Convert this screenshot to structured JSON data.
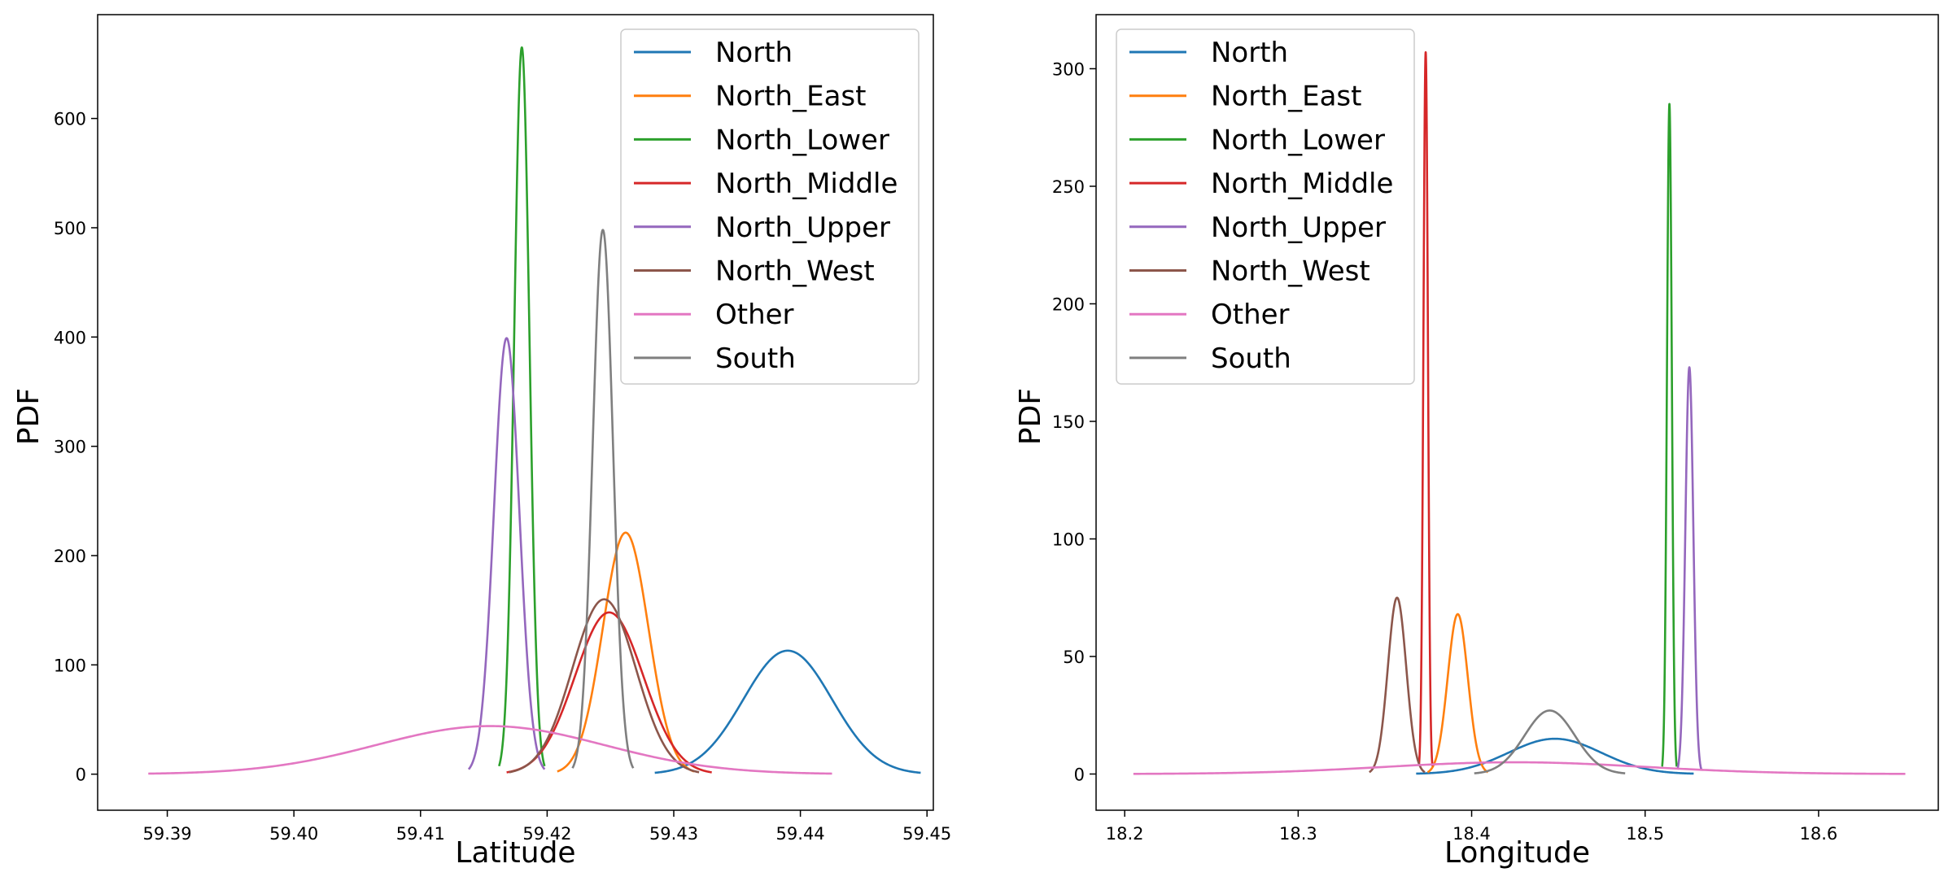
{
  "chart_data": [
    {
      "type": "line",
      "title": "",
      "xlabel": "Latitude",
      "ylabel": "PDF",
      "xlim": [
        59.3845,
        59.4505
      ],
      "ylim": [
        -33,
        695
      ],
      "xticks": [
        "59.39",
        "59.40",
        "59.41",
        "59.42",
        "59.43",
        "59.44",
        "59.45"
      ],
      "xtick_values": [
        59.39,
        59.4,
        59.41,
        59.42,
        59.43,
        59.44,
        59.45
      ],
      "yticks": [
        "0",
        "100",
        "200",
        "300",
        "400",
        "500",
        "600"
      ],
      "ytick_values": [
        0,
        100,
        200,
        300,
        400,
        500,
        600
      ],
      "grid": false,
      "legend_position": "top-right",
      "series": [
        {
          "name": "North",
          "color": "#1f77b4",
          "mu": 59.439,
          "sigma": 0.0035,
          "peak": 113,
          "x_range": [
            59.4285,
            59.4495
          ]
        },
        {
          "name": "North_East",
          "color": "#ff7f0e",
          "mu": 59.4262,
          "sigma": 0.0018,
          "peak": 221,
          "x_range": [
            59.4208,
            59.4316
          ]
        },
        {
          "name": "North_Lower",
          "color": "#2ca02c",
          "mu": 59.418,
          "sigma": 0.0006,
          "peak": 665,
          "x_range": [
            59.4162,
            59.4198
          ]
        },
        {
          "name": "North_Middle",
          "color": "#d62728",
          "mu": 59.4249,
          "sigma": 0.0027,
          "peak": 148,
          "x_range": [
            59.4168,
            59.433
          ]
        },
        {
          "name": "North_Upper",
          "color": "#9467bd",
          "mu": 59.4168,
          "sigma": 0.001,
          "peak": 399,
          "x_range": [
            59.4138,
            59.4198
          ]
        },
        {
          "name": "North_West",
          "color": "#8c564b",
          "mu": 59.4245,
          "sigma": 0.0025,
          "peak": 160,
          "x_range": [
            59.417,
            59.432
          ]
        },
        {
          "name": "Other",
          "color": "#e377c2",
          "mu": 59.4155,
          "sigma": 0.009,
          "peak": 44,
          "x_range": [
            59.3885,
            59.4425
          ]
        },
        {
          "name": "South",
          "color": "#7f7f7f",
          "mu": 59.4244,
          "sigma": 0.0008,
          "peak": 498,
          "x_range": [
            59.422,
            59.4268
          ]
        }
      ]
    },
    {
      "type": "line",
      "title": "",
      "xlabel": "Longitude",
      "ylabel": "PDF",
      "xlim": [
        18.1835,
        18.669
      ],
      "ylim": [
        -15.4,
        323
      ],
      "xticks": [
        "18.2",
        "18.3",
        "18.4",
        "18.5",
        "18.6"
      ],
      "xtick_values": [
        18.2,
        18.3,
        18.4,
        18.5,
        18.6
      ],
      "yticks": [
        "0",
        "50",
        "100",
        "150",
        "200",
        "250",
        "300"
      ],
      "ytick_values": [
        0,
        50,
        100,
        150,
        200,
        250,
        300
      ],
      "grid": false,
      "legend_position": "top-left",
      "series": [
        {
          "name": "North",
          "color": "#1f77b4",
          "mu": 18.448,
          "sigma": 0.0267,
          "peak": 15,
          "x_range": [
            18.368,
            18.528
          ]
        },
        {
          "name": "North_East",
          "color": "#ff7f0e",
          "mu": 18.392,
          "sigma": 0.0058,
          "peak": 68,
          "x_range": [
            18.3746,
            18.4094
          ]
        },
        {
          "name": "North_Lower",
          "color": "#2ca02c",
          "mu": 18.514,
          "sigma": 0.0014,
          "peak": 285,
          "x_range": [
            18.5098,
            18.5182
          ]
        },
        {
          "name": "North_Middle",
          "color": "#d62728",
          "mu": 18.3735,
          "sigma": 0.0013,
          "peak": 307,
          "x_range": [
            18.3696,
            18.3774
          ]
        },
        {
          "name": "North_Upper",
          "color": "#9467bd",
          "mu": 18.5255,
          "sigma": 0.0023,
          "peak": 173,
          "x_range": [
            18.5186,
            18.5324
          ]
        },
        {
          "name": "North_West",
          "color": "#8c564b",
          "mu": 18.357,
          "sigma": 0.0053,
          "peak": 75,
          "x_range": [
            18.341,
            18.373
          ]
        },
        {
          "name": "Other",
          "color": "#e377c2",
          "mu": 18.425,
          "sigma": 0.075,
          "peak": 5,
          "x_range": [
            18.205,
            18.65
          ]
        },
        {
          "name": "South",
          "color": "#7f7f7f",
          "mu": 18.445,
          "sigma": 0.0145,
          "peak": 27,
          "x_range": [
            18.4015,
            18.4885
          ]
        }
      ]
    }
  ]
}
